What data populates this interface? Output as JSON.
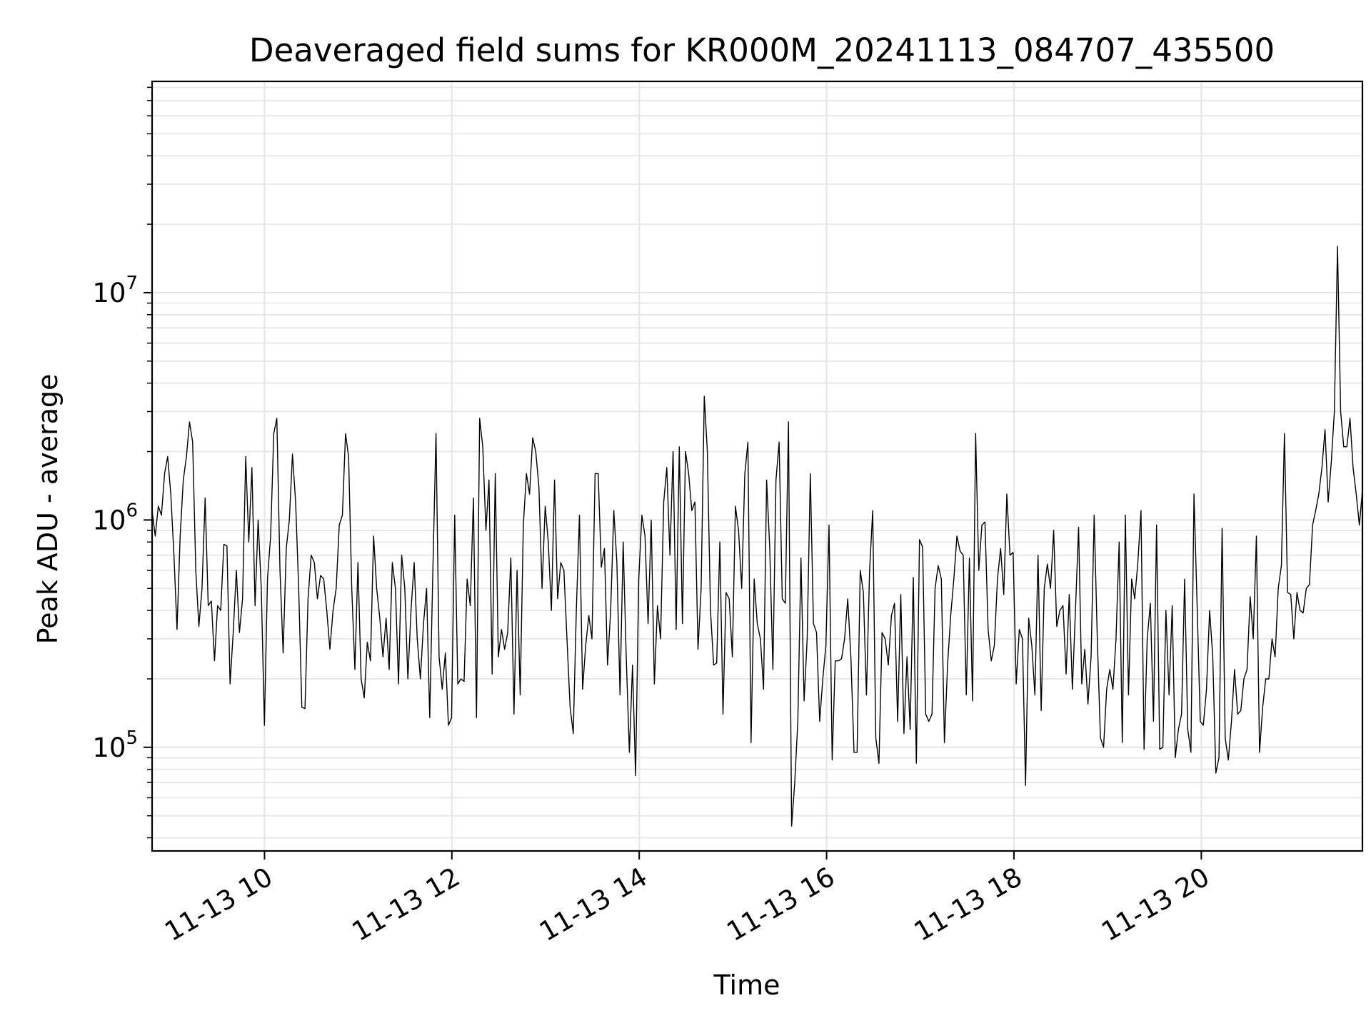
{
  "chart_data": {
    "type": "line",
    "title": "Deaveraged field sums for KR000M_20241113_084707_435500",
    "xlabel": "Time",
    "ylabel": "Peak ADU - average",
    "yscale": "log",
    "ylim": [
      35000,
      85000000
    ],
    "xlim_hours": [
      8.8,
      21.72
    ],
    "grid": true,
    "line_color": "#000000",
    "grid_color": "#e6e6e6",
    "legend": "none",
    "x_ticks": [
      {
        "hour": 10,
        "label": "11-13 10"
      },
      {
        "hour": 12,
        "label": "11-13 12"
      },
      {
        "hour": 14,
        "label": "11-13 14"
      },
      {
        "hour": 16,
        "label": "11-13 16"
      },
      {
        "hour": 18,
        "label": "11-13 18"
      },
      {
        "hour": 20,
        "label": "11-13 20"
      }
    ],
    "y_ticks": [
      {
        "value": 100000,
        "base": "10",
        "exp": "5"
      },
      {
        "value": 1000000,
        "base": "10",
        "exp": "6"
      },
      {
        "value": 10000000,
        "base": "10",
        "exp": "7"
      }
    ],
    "series": [
      {
        "x_start_hour": 8.8,
        "x_step_hour": 0.0333,
        "values": [
          1100000.0,
          850000.0,
          1150000.0,
          1050000.0,
          1600000.0,
          1900000.0,
          1300000.0,
          700000.0,
          330000.0,
          850000.0,
          1500000.0,
          1900000.0,
          2700000.0,
          2200000.0,
          600000.0,
          340000.0,
          500000.0,
          1250000.0,
          420000.0,
          440000.0,
          240000.0,
          420000.0,
          400000.0,
          780000.0,
          770000.0,
          190000.0,
          320000.0,
          600000.0,
          320000.0,
          450000.0,
          1900000.0,
          800000.0,
          1700000.0,
          420000.0,
          1000000.0,
          500000.0,
          125000.0,
          550000.0,
          850000.0,
          2400000.0,
          2800000.0,
          600000.0,
          260000.0,
          750000.0,
          1000000.0,
          1950000.0,
          1200000.0,
          500000.0,
          150000.0,
          148000.0,
          450000.0,
          700000.0,
          650000.0,
          450000.0,
          570000.0,
          550000.0,
          400000.0,
          270000.0,
          400000.0,
          500000.0,
          950000.0,
          1050000.0,
          2400000.0,
          1900000.0,
          500000.0,
          220000.0,
          650000.0,
          200000.0,
          165000.0,
          290000.0,
          240000.0,
          850000.0,
          500000.0,
          370000.0,
          250000.0,
          370000.0,
          220000.0,
          650000.0,
          500000.0,
          190000.0,
          700000.0,
          500000.0,
          200000.0,
          400000.0,
          650000.0,
          300000.0,
          200000.0,
          350000.0,
          500000.0,
          135000.0,
          600000.0,
          2400000.0,
          250000.0,
          180000.0,
          260000.0,
          125000.0,
          135000.0,
          1050000.0,
          190000.0,
          200000.0,
          195000.0,
          550000.0,
          420000.0,
          1250000.0,
          135000.0,
          2800000.0,
          2100000.0,
          900000.0,
          1500000.0,
          210000.0,
          1600000.0,
          250000.0,
          330000.0,
          270000.0,
          320000.0,
          680000.0,
          140000.0,
          600000.0,
          170000.0,
          950000.0,
          1600000.0,
          1300000.0,
          2300000.0,
          2000000.0,
          1400000.0,
          500000.0,
          1150000.0,
          800000.0,
          400000.0,
          1500000.0,
          450000.0,
          650000.0,
          600000.0,
          300000.0,
          150000.0,
          115000.0,
          400000.0,
          1050000.0,
          180000.0,
          280000.0,
          380000.0,
          300000.0,
          1600000.0,
          1600000.0,
          620000.0,
          750000.0,
          230000.0,
          400000.0,
          1100000.0,
          650000.0,
          170000.0,
          800000.0,
          250000.0,
          95000.0,
          230000.0,
          75000.0,
          550000.0,
          1050000.0,
          850000.0,
          350000.0,
          1000000.0,
          190000.0,
          420000.0,
          300000.0,
          1200000.0,
          1700000.0,
          700000.0,
          2000000.0,
          330000.0,
          2100000.0,
          350000.0,
          2000000.0,
          1600000.0,
          1100000.0,
          1200000.0,
          270000.0,
          500000.0,
          3500000.0,
          2000000.0,
          400000.0,
          230000.0,
          235000.0,
          800000.0,
          140000.0,
          480000.0,
          450000.0,
          250000.0,
          1150000.0,
          900000.0,
          500000.0,
          1600000.0,
          2200000.0,
          105000.0,
          550000.0,
          350000.0,
          300000.0,
          180000.0,
          1500000.0,
          750000.0,
          220000.0,
          1500000.0,
          2200000.0,
          450000.0,
          430000.0,
          2700000.0,
          45000.0,
          70000.0,
          130000.0,
          680000.0,
          160000.0,
          300000.0,
          1600000.0,
          350000.0,
          320000.0,
          130000.0,
          200000.0,
          280000.0,
          950000.0,
          88000.0,
          240000.0,
          240000.0,
          245000.0,
          300000.0,
          450000.0,
          250000.0,
          95000.0,
          95000.0,
          600000.0,
          480000.0,
          170000.0,
          600000.0,
          1100000.0,
          110000.0,
          85000.0,
          320000.0,
          300000.0,
          230000.0,
          380000.0,
          430000.0,
          130000.0,
          470000.0,
          115000.0,
          250000.0,
          120000.0,
          560000.0,
          85000.0,
          820000.0,
          760000.0,
          140000.0,
          130000.0,
          140000.0,
          500000.0,
          630000.0,
          550000.0,
          105000.0,
          230000.0,
          380000.0,
          550000.0,
          850000.0,
          730000.0,
          700000.0,
          170000.0,
          680000.0,
          160000.0,
          2400000.0,
          600000.0,
          950000.0,
          980000.0,
          330000.0,
          240000.0,
          280000.0,
          550000.0,
          750000.0,
          470000.0,
          1300000.0,
          700000.0,
          720000.0,
          190000.0,
          330000.0,
          300000.0,
          68000.0,
          370000.0,
          280000.0,
          170000.0,
          700000.0,
          145000.0,
          500000.0,
          640000.0,
          500000.0,
          900000.0,
          340000.0,
          400000.0,
          420000.0,
          210000.0,
          470000.0,
          180000.0,
          400000.0,
          930000.0,
          190000.0,
          270000.0,
          155000.0,
          250000.0,
          1050000.0,
          300000.0,
          110000.0,
          100000.0,
          180000.0,
          220000.0,
          180000.0,
          300000.0,
          800000.0,
          105000.0,
          1050000.0,
          170000.0,
          550000.0,
          450000.0,
          650000.0,
          1100000.0,
          98000.0,
          300000.0,
          430000.0,
          130000.0,
          950000.0,
          98000.0,
          100000.0,
          400000.0,
          170000.0,
          420000.0,
          90000.0,
          120000.0,
          140000.0,
          550000.0,
          120000.0,
          95000.0,
          1300000.0,
          420000.0,
          130000.0,
          125000.0,
          180000.0,
          400000.0,
          250000.0,
          77000.0,
          90000.0,
          920000.0,
          110000.0,
          88000.0,
          130000.0,
          220000.0,
          140000.0,
          145000.0,
          200000.0,
          220000.0,
          460000.0,
          300000.0,
          850000.0,
          95000.0,
          150000.0,
          200000.0,
          200000.0,
          300000.0,
          250000.0,
          500000.0,
          630000.0,
          2400000.0,
          480000.0,
          470000.0,
          300000.0,
          480000.0,
          400000.0,
          390000.0,
          500000.0,
          520000.0,
          950000.0,
          1100000.0,
          1300000.0,
          1700000.0,
          2500000.0,
          1200000.0,
          1800000.0,
          3000000.0,
          16000000.0,
          3000000.0,
          2100000.0,
          2100000.0,
          2800000.0,
          1700000.0,
          1300000.0,
          950000.0,
          1350000.0
        ]
      }
    ]
  }
}
